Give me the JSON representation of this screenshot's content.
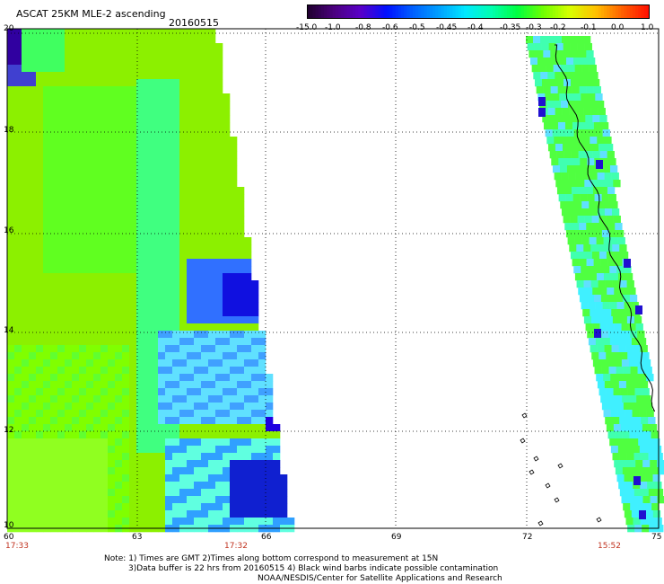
{
  "header": {
    "title": "ASCAT 25KM MLE-2 ascending",
    "date": "20160515"
  },
  "colorbar": {
    "tick_labels": [
      "-15.0",
      "-1.0",
      "-0.8",
      "-0.6",
      "-0.5",
      "-0.45",
      "-0.4",
      "-0.35",
      "-0.3",
      "-0.2",
      "-0.1",
      "0.0",
      "1.0"
    ],
    "colors": [
      "#200030",
      "#4c0080",
      "#5a00c8",
      "#0010ff",
      "#0060ff",
      "#00a0ff",
      "#00e8ff",
      "#00ffb0",
      "#00ff40",
      "#70ff00",
      "#d8ff00",
      "#ffc000",
      "#ff6000",
      "#ff1000"
    ]
  },
  "map": {
    "y_labels": [
      "20",
      "18",
      "16",
      "14",
      "12",
      "10"
    ],
    "x_labels": [
      "60",
      "63",
      "66",
      "69",
      "72",
      "75"
    ],
    "times": [
      "17:33",
      "17:32",
      "15:52"
    ]
  },
  "notes": {
    "line1": "Note: 1) Times are GMT 2)Times along bottom correspond to measurement at 15N",
    "line2": "3)Data buffer is 22 hrs from 20160515 4) Black wind barbs indicate possible contamination",
    "line3": "NOAA/NESDIS/Center for Satellite Applications and Research"
  }
}
